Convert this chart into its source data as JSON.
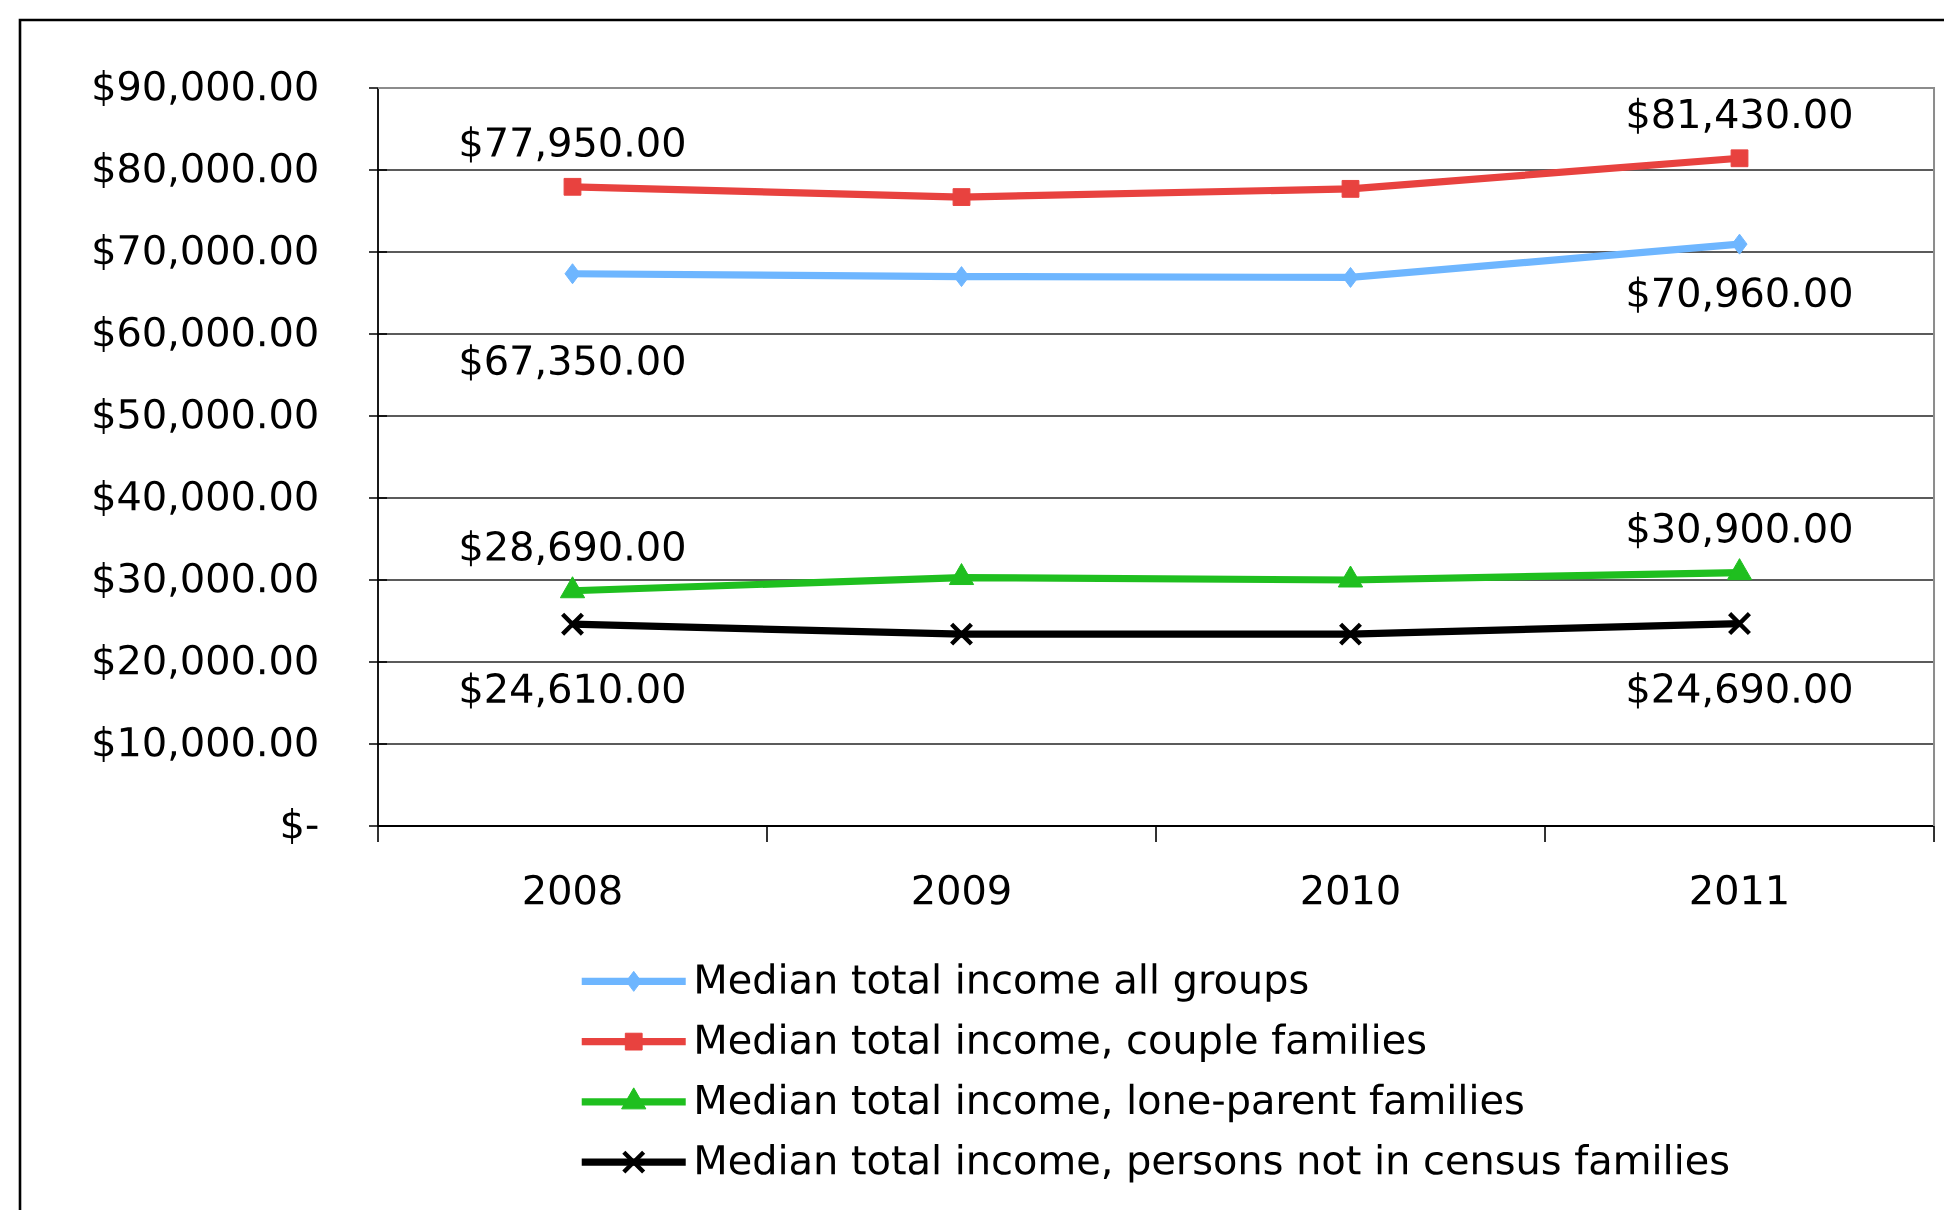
{
  "chart_data": {
    "type": "line",
    "categories": [
      "2008",
      "2009",
      "2010",
      "2011"
    ],
    "series": [
      {
        "name": "Median total income all groups",
        "color": "#6eb6ff",
        "marker": "diamond",
        "values": [
          67350,
          67000,
          66900,
          70960
        ],
        "value_labels": [
          "$67,350.00",
          null,
          null,
          "$70,960.00"
        ]
      },
      {
        "name": "Median total income, couple families",
        "color": "#e8423f",
        "marker": "square",
        "values": [
          77950,
          76700,
          77700,
          81430
        ],
        "value_labels": [
          "$77,950.00",
          null,
          null,
          "$81,430.00"
        ]
      },
      {
        "name": "Median total income, lone-parent families",
        "color": "#1fbf1f",
        "marker": "triangle",
        "values": [
          28690,
          30300,
          30000,
          30900
        ],
        "value_labels": [
          "$28,690.00",
          null,
          null,
          "$30,900.00"
        ]
      },
      {
        "name": "Median total income, persons not in census families",
        "color": "#000000",
        "marker": "cross",
        "values": [
          24610,
          23400,
          23400,
          24690
        ],
        "value_labels": [
          "$24,610.00",
          null,
          null,
          "$24,690.00"
        ]
      }
    ],
    "ylim": [
      0,
      90000
    ],
    "yticks": [
      {
        "value": 0,
        "label": "$-"
      },
      {
        "value": 10000,
        "label": "$10,000.00"
      },
      {
        "value": 20000,
        "label": "$20,000.00"
      },
      {
        "value": 30000,
        "label": "$30,000.00"
      },
      {
        "value": 40000,
        "label": "$40,000.00"
      },
      {
        "value": 50000,
        "label": "$50,000.00"
      },
      {
        "value": 60000,
        "label": "$60,000.00"
      },
      {
        "value": 70000,
        "label": "$70,000.00"
      },
      {
        "value": 80000,
        "label": "$80,000.00"
      },
      {
        "value": 90000,
        "label": "$90,000.00"
      }
    ],
    "grid": "y",
    "legend": "bottom",
    "line_style": "solid"
  }
}
